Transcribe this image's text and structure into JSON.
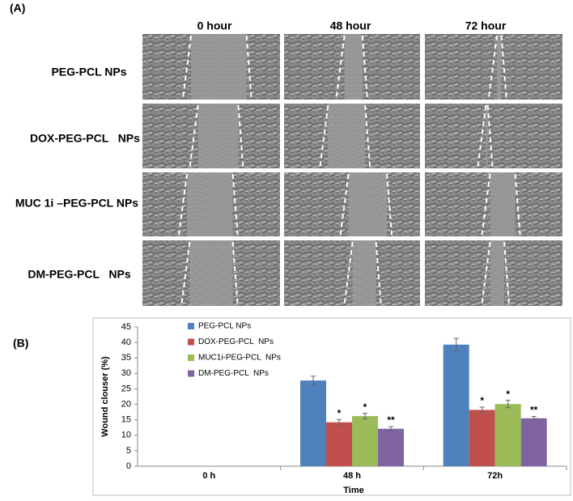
{
  "panel_a": {
    "label": "(A)",
    "columns": [
      "0 hour",
      "48 hour",
      "72 hour"
    ],
    "rows": [
      "PEG-PCL NPs",
      "DOX-PEG-PCL   NPs",
      "MUC 1i –PEG-PCL NPs",
      "DM-PEG-PCL   NPs"
    ]
  },
  "chart_data": {
    "type": "bar",
    "panel_label": "(B)",
    "x_label": "Time",
    "y_label": "Wound clouser (%)",
    "categories": [
      "0 h",
      "48 h",
      "72h"
    ],
    "series": [
      {
        "name": "PEG-PCL NPs",
        "color": "#4f81bd",
        "values": [
          null,
          27.7,
          39.3
        ],
        "errors": [
          null,
          1.4,
          2.0
        ],
        "significance": [
          null,
          null,
          null
        ]
      },
      {
        "name": "DOX-PEG-PCL  NPs",
        "color": "#c0504d",
        "values": [
          null,
          14.2,
          18.2
        ],
        "errors": [
          null,
          0.9,
          0.9
        ],
        "significance": [
          null,
          "*",
          "*"
        ]
      },
      {
        "name": "MUC1i-PEG-PCL  NPs",
        "color": "#9bbb59",
        "values": [
          null,
          16.2,
          20.1
        ],
        "errors": [
          null,
          0.9,
          1.2
        ],
        "significance": [
          null,
          "*",
          "*"
        ]
      },
      {
        "name": "DM-PEG-PCL  NPs",
        "color": "#8064a2",
        "values": [
          null,
          12.1,
          15.5
        ],
        "errors": [
          null,
          0.7,
          0.6
        ],
        "significance": [
          null,
          "**",
          "**"
        ]
      }
    ],
    "ylim": [
      0,
      45
    ],
    "yticks": [
      0,
      5,
      10,
      15,
      20,
      25,
      30,
      35,
      40,
      45
    ],
    "grid": false
  }
}
